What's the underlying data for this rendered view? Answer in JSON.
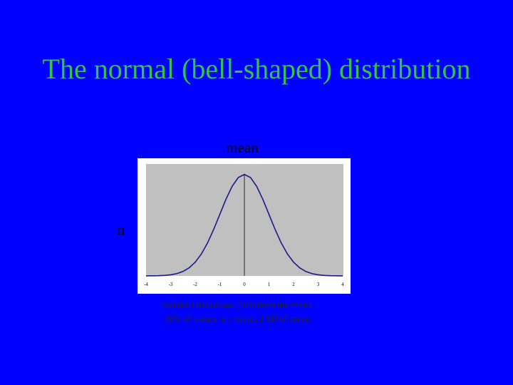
{
  "slide": {
    "title": "The normal (bell-shaped) distribution",
    "top_label": "mean",
    "side_label": "n",
    "caption": [
      "Standard deviations (SD) from the mean.",
      "95% of values are within 2 SD of mean"
    ]
  },
  "chart_data": {
    "type": "line",
    "x": [
      -4,
      -3.75,
      -3.5,
      -3.25,
      -3,
      -2.75,
      -2.5,
      -2.25,
      -2,
      -1.75,
      -1.5,
      -1.25,
      -1,
      -0.75,
      -0.5,
      -0.25,
      0,
      0.25,
      0.5,
      0.75,
      1,
      1.25,
      1.5,
      1.75,
      2,
      2.25,
      2.5,
      2.75,
      3,
      3.25,
      3.5,
      3.75,
      4
    ],
    "values": [
      0.0001,
      0.0004,
      0.0009,
      0.002,
      0.0044,
      0.0091,
      0.0175,
      0.0317,
      0.054,
      0.0863,
      0.1295,
      0.1826,
      0.242,
      0.3011,
      0.3521,
      0.3867,
      0.3989,
      0.3867,
      0.3521,
      0.3011,
      0.242,
      0.1826,
      0.1295,
      0.0863,
      0.054,
      0.0317,
      0.0175,
      0.0091,
      0.0044,
      0.002,
      0.0009,
      0.0004,
      0.0001
    ],
    "color": "#1a1a8c",
    "xlim": [
      -4,
      4
    ],
    "xticks": [
      -4,
      -3,
      -2,
      -1,
      0,
      1,
      2,
      3,
      4
    ],
    "ylim": [
      0,
      0.44
    ]
  }
}
